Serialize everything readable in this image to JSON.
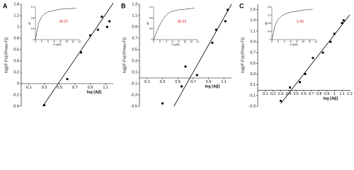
{
  "chart_data": [
    {
      "type": "scatter",
      "panel": "A",
      "ylabel": "log[(F-Fo)/(Fmax-F)]",
      "xlabel": "log [Aβ]",
      "x": [
        0.3,
        0.6,
        0.78,
        0.9,
        1.0,
        1.05,
        1.12,
        1.15
      ],
      "y": [
        -0.38,
        0.08,
        0.55,
        0.85,
        0.95,
        1.18,
        1.0,
        1.1
      ],
      "fit": {
        "x": [
          0.28,
          1.2
        ],
        "y": [
          -0.4,
          1.42
        ]
      },
      "xlim": [
        0,
        1.2
      ],
      "ylim": [
        -0.4,
        1.4
      ],
      "xticks": [
        0.1,
        0.3,
        0.5,
        0.7,
        0.9,
        1.1
      ],
      "yticks": [
        -0.4,
        -0.2,
        0,
        0.2,
        0.4,
        0.6,
        0.8,
        1,
        1.2,
        1.4
      ],
      "color": "#000000",
      "inset": {
        "type": "line",
        "annotation": "25-37",
        "xlabel": "Lf (μM)",
        "ylabel": "ΔF",
        "x": [
          0,
          1,
          2,
          3,
          4,
          5,
          6,
          8,
          10,
          12,
          13
        ],
        "values": [
          0,
          0.6,
          0.85,
          0.95,
          1.02,
          1.05,
          1.08,
          1.12,
          1.14,
          1.15,
          1.16
        ],
        "xlim": [
          0,
          14
        ],
        "ylim": [
          0,
          1.2
        ],
        "xticks": [
          0,
          2,
          4,
          6,
          8,
          10,
          12,
          14
        ],
        "yticks": [
          0,
          0.4,
          0.8,
          1.2
        ]
      }
    },
    {
      "type": "scatter",
      "panel": "B",
      "ylabel": "log[(F-Fo)/(Fmax-F)]",
      "xlabel": "log [Aβ]",
      "x": [
        0.3,
        0.55,
        0.6,
        0.75,
        0.95,
        1.0,
        1.12,
        1.15
      ],
      "y": [
        -0.45,
        -0.15,
        0.2,
        0.05,
        0.62,
        0.85,
        1.0,
        1.2
      ],
      "fit": {
        "x": [
          0.45,
          1.2
        ],
        "y": [
          -0.5,
          1.3
        ]
      },
      "xlim": [
        0,
        1.2
      ],
      "ylim": [
        -0.5,
        1.3
      ],
      "xticks": [
        0.1,
        0.3,
        0.5,
        0.7,
        0.9,
        1.1
      ],
      "yticks": [
        -0.5,
        -0.3,
        -0.1,
        0.1,
        0.3,
        0.5,
        0.7,
        0.9,
        1.1,
        1.3
      ],
      "color": "#000000",
      "inset": {
        "type": "line",
        "annotation": "28-33",
        "xlabel": "Lf (μM)",
        "ylabel": "ΔF",
        "x": [
          0,
          1,
          2,
          3,
          4,
          5,
          6,
          8,
          10,
          12,
          13
        ],
        "values": [
          0,
          0.3,
          0.55,
          0.75,
          0.9,
          1.0,
          1.05,
          1.1,
          1.12,
          1.15,
          1.16
        ],
        "xlim": [
          0,
          14
        ],
        "ylim": [
          0,
          1.2
        ],
        "xticks": [
          0,
          2,
          4,
          6,
          8,
          10,
          12,
          14
        ],
        "yticks": [
          0,
          0.4,
          0.8,
          1.2
        ]
      }
    },
    {
      "type": "scatter",
      "panel": "C",
      "ylabel": "log[(F-Fo)/(Fmax-F)]",
      "xlabel": "log [Aβ]",
      "x": [
        0.3,
        0.42,
        0.55,
        0.62,
        0.72,
        0.85,
        0.95,
        1.0,
        1.1,
        1.12
      ],
      "y": [
        -0.2,
        0.05,
        0.15,
        0.3,
        0.6,
        0.7,
        0.9,
        1.05,
        1.25,
        1.3
      ],
      "fit": {
        "x": [
          0.3,
          1.2
        ],
        "y": [
          -0.25,
          1.4
        ]
      },
      "xlim": [
        0,
        1.2
      ],
      "ylim": [
        -0.3,
        1.6
      ],
      "xticks": [
        0.1,
        0.2,
        0.3,
        0.4,
        0.5,
        0.6,
        0.7,
        0.8,
        0.9,
        1,
        1.1,
        1.2
      ],
      "yticks": [
        -0.3,
        -0.1,
        0.1,
        0.3,
        0.5,
        0.7,
        0.9,
        1.1,
        1.3,
        1.5
      ],
      "color": "#000000",
      "inset": {
        "type": "line",
        "annotation": "1-40",
        "xlabel": "Lf (μM)",
        "ylabel": "ΔF",
        "x": [
          0,
          1,
          2,
          3,
          4,
          5,
          6,
          8,
          10,
          12,
          13
        ],
        "values": [
          0,
          0.7,
          1.0,
          1.15,
          1.25,
          1.3,
          1.35,
          1.4,
          1.45,
          1.48,
          1.5
        ],
        "xlim": [
          0,
          14
        ],
        "ylim": [
          0,
          1.6
        ],
        "xticks": [
          0,
          2,
          4,
          6,
          8,
          10,
          12,
          14
        ],
        "yticks": [
          0,
          0.4,
          0.8,
          1.2,
          1.6
        ]
      }
    }
  ]
}
